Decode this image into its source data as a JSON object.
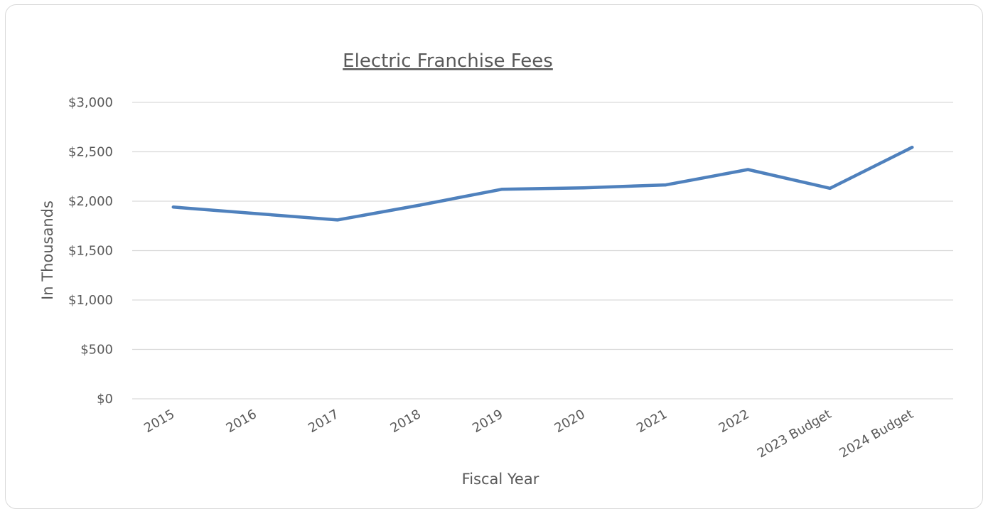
{
  "chart_data": {
    "type": "line",
    "title": "Electric Franchise Fees",
    "xlabel": "Fiscal Year",
    "ylabel": "In Thousands",
    "categories": [
      "2015",
      "2016",
      "2017",
      "2018",
      "2019",
      "2020",
      "2021",
      "2022",
      "2023 Budget",
      "2024 Budget"
    ],
    "series": [
      {
        "values": [
          1940,
          1875,
          1810,
          1960,
          2120,
          2135,
          2165,
          2320,
          2130,
          2545
        ],
        "color": "#4f81bd"
      }
    ],
    "ylim": [
      0,
      3000
    ],
    "y_ticks": [
      {
        "value": 0,
        "label": "$0"
      },
      {
        "value": 500,
        "label": "$500"
      },
      {
        "value": 1000,
        "label": "$1,000"
      },
      {
        "value": 1500,
        "label": "$1,500"
      },
      {
        "value": 2000,
        "label": "$2,000"
      },
      {
        "value": 2500,
        "label": "$2,500"
      },
      {
        "value": 3000,
        "label": "$3,000"
      }
    ],
    "grid": true,
    "legend": "none"
  }
}
